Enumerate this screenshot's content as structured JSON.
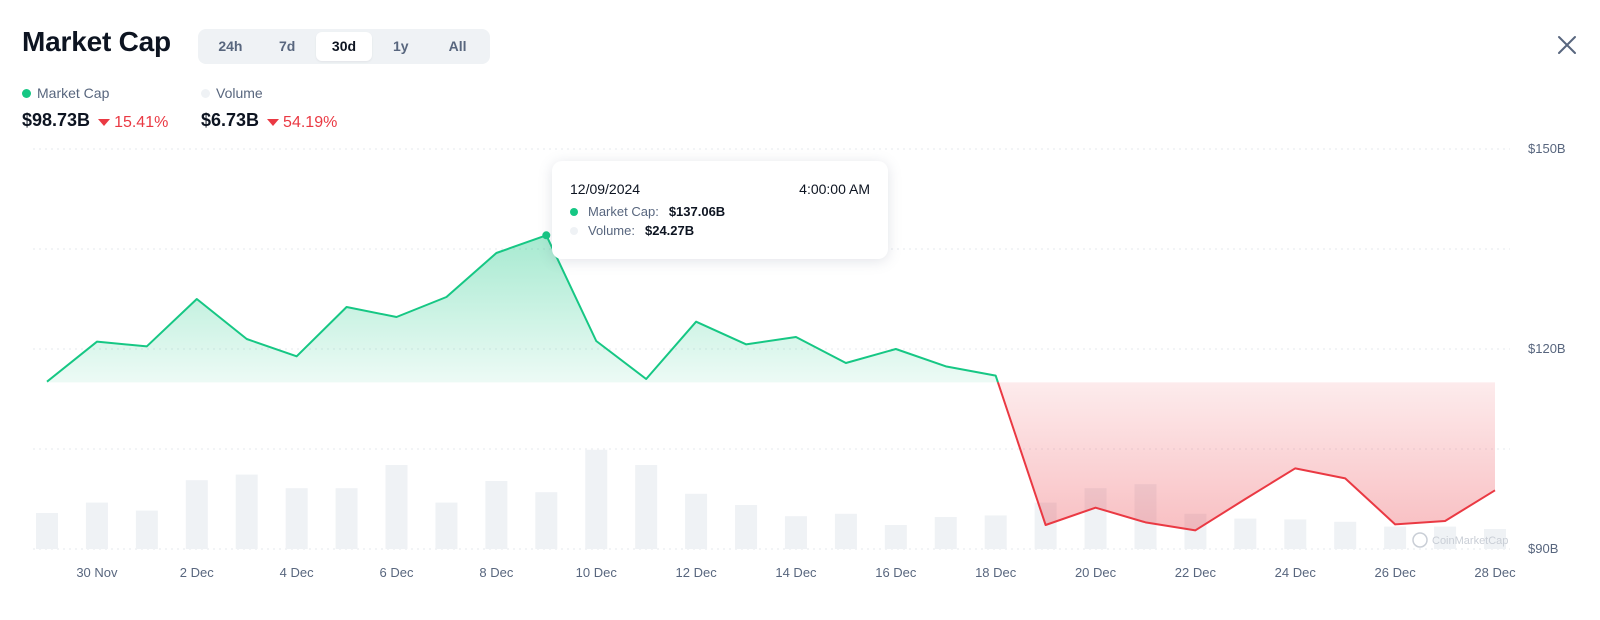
{
  "header": {
    "title": "Market Cap",
    "tabs": [
      "24h",
      "7d",
      "30d",
      "1y",
      "All"
    ],
    "active_tab": "30d"
  },
  "stats": {
    "market_cap": {
      "label": "Market Cap",
      "value": "$98.73B",
      "change": "15.41%",
      "color": "#16c784"
    },
    "volume": {
      "label": "Volume",
      "value": "$6.73B",
      "change": "54.19%",
      "color": "#eff2f5"
    }
  },
  "tooltip": {
    "date": "12/09/2024",
    "time": "4:00:00 AM",
    "market_cap_label": "Market Cap:",
    "market_cap_value": "$137.06B",
    "volume_label": "Volume:",
    "volume_value": "$24.27B"
  },
  "watermark": "CoinMarketCap",
  "colors": {
    "up": "#16c784",
    "down": "#ea3943",
    "volume_bar": "#eff2f5",
    "text_muted": "#58667e"
  },
  "chart_data": {
    "type": "area",
    "baseline": 115,
    "y_ticks": [
      90,
      120,
      150
    ],
    "y_tick_labels": [
      "$90B",
      "$120B",
      "$150B"
    ],
    "ylim": [
      90,
      150
    ],
    "x_tick_labels": [
      "30 Nov",
      "2 Dec",
      "4 Dec",
      "6 Dec",
      "8 Dec",
      "10 Dec",
      "12 Dec",
      "14 Dec",
      "16 Dec",
      "18 Dec",
      "20 Dec",
      "22 Dec",
      "24 Dec",
      "26 Dec",
      "28 Dec"
    ],
    "series": [
      {
        "name": "Market Cap",
        "values": [
          115.1,
          121.1,
          120.4,
          127.5,
          121.5,
          118.9,
          126.3,
          124.8,
          127.8,
          134.4,
          137.06,
          121.2,
          115.5,
          124.1,
          120.7,
          121.8,
          117.9,
          120.0,
          117.4,
          116.0,
          93.6,
          96.2,
          94.0,
          92.8,
          97.5,
          102.1,
          100.6,
          93.7,
          94.2,
          98.8
        ]
      },
      {
        "name": "Volume",
        "values": [
          4.5,
          5.8,
          4.8,
          8.6,
          9.3,
          7.6,
          7.6,
          10.5,
          5.8,
          8.5,
          7.1,
          12.4,
          10.5,
          6.9,
          5.5,
          4.1,
          4.4,
          3.0,
          4.0,
          4.2,
          5.8,
          7.6,
          8.1,
          4.4,
          3.8,
          3.7,
          3.4,
          2.8,
          2.8,
          2.5
        ]
      }
    ]
  }
}
